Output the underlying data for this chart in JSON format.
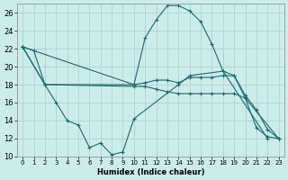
{
  "xlabel": "Humidex (Indice chaleur)",
  "bg_color": "#ccecea",
  "grid_color": "#aad4d2",
  "line_color": "#1a6b6b",
  "xlim": [
    -0.5,
    23.5
  ],
  "ylim": [
    10,
    27
  ],
  "xticks": [
    0,
    1,
    2,
    3,
    4,
    5,
    6,
    7,
    8,
    9,
    10,
    11,
    12,
    13,
    14,
    15,
    16,
    17,
    18,
    19,
    20,
    21,
    22,
    23
  ],
  "yticks": [
    10,
    12,
    14,
    16,
    18,
    20,
    22,
    24,
    26
  ],
  "series": [
    {
      "x": [
        0,
        10,
        11,
        12,
        13,
        14,
        15,
        16,
        17,
        18,
        19,
        20,
        21,
        22,
        23
      ],
      "y": [
        22.2,
        18.0,
        23.2,
        25.2,
        26.8,
        26.8,
        26.2,
        25.0,
        22.5,
        19.5,
        19.0,
        16.8,
        15.2,
        13.0,
        12.0
      ]
    },
    {
      "x": [
        0,
        2,
        10,
        11,
        12,
        13,
        14,
        15,
        16,
        17,
        18,
        19,
        20,
        23
      ],
      "y": [
        22.2,
        18.0,
        18.0,
        18.2,
        18.5,
        18.5,
        18.2,
        18.8,
        18.8,
        18.8,
        19.0,
        19.0,
        16.5,
        12.0
      ]
    },
    {
      "x": [
        0,
        2,
        10,
        11,
        12,
        13,
        14,
        15,
        16,
        17,
        18,
        19,
        20,
        21,
        22,
        23
      ],
      "y": [
        22.2,
        18.0,
        17.8,
        17.8,
        17.5,
        17.2,
        17.0,
        17.0,
        17.0,
        17.0,
        17.0,
        17.0,
        16.5,
        13.2,
        12.2,
        12.0
      ]
    },
    {
      "x": [
        0,
        1,
        2,
        3,
        4,
        5,
        6,
        7,
        8,
        9,
        10,
        14,
        15,
        18,
        22
      ],
      "y": [
        22.2,
        21.8,
        18.0,
        16.0,
        14.0,
        13.5,
        11.0,
        11.5,
        10.2,
        10.5,
        14.2,
        18.0,
        19.0,
        19.5,
        12.0
      ]
    }
  ]
}
